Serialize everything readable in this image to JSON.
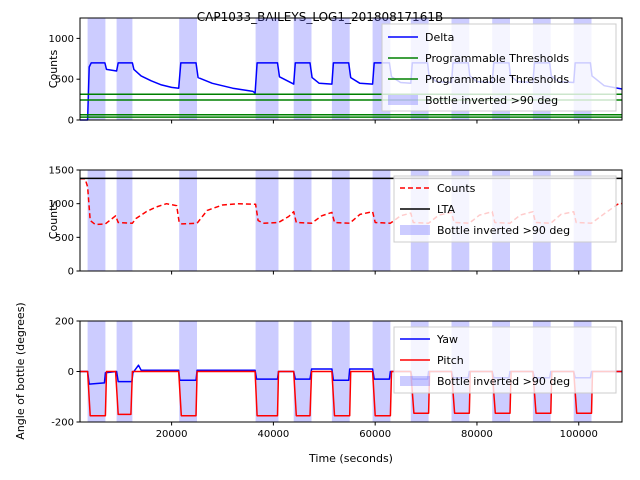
{
  "figure": {
    "title": "CAP1033_BAILEYS_LOG1_20180817161B",
    "xlabel": "Time (seconds)"
  },
  "shaded_intervals": [
    [
      3500,
      7000
    ],
    [
      9200,
      12300
    ],
    [
      21500,
      25000
    ],
    [
      36500,
      41000
    ],
    [
      44000,
      47500
    ],
    [
      51500,
      55000
    ],
    [
      59500,
      63000
    ],
    [
      67000,
      70500
    ],
    [
      75000,
      78500
    ],
    [
      83000,
      86500
    ],
    [
      91000,
      94500
    ],
    [
      99000,
      102500
    ]
  ],
  "chart_data": [
    {
      "type": "line",
      "ylabel": "Counts",
      "xlim": [
        2000,
        108500
      ],
      "ylim": [
        0,
        1250
      ],
      "x_ticks": [
        20000,
        40000,
        60000,
        80000,
        100000
      ],
      "y_ticks": [
        0,
        500,
        1000
      ],
      "legend_position": "top-right",
      "legend": [
        "Delta",
        "Programmable Thresholds",
        "Programmable Thresholds",
        "Bottle inverted >90 deg"
      ],
      "series": [
        {
          "name": "Delta",
          "color": "#0000ff",
          "x": [
            2000,
            3500,
            3800,
            4200,
            6900,
            7200,
            9200,
            9500,
            12300,
            12600,
            14000,
            16000,
            18000,
            20000,
            21400,
            21800,
            24800,
            25200,
            28000,
            32000,
            36000,
            36400,
            36800,
            40800,
            41200,
            44000,
            44300,
            47200,
            47600,
            49000,
            51500,
            51800,
            54800,
            55200,
            57000,
            59500,
            59800,
            62800,
            63200,
            65000,
            67000,
            67300,
            70300,
            70600,
            72000,
            75000,
            75300,
            78300,
            78600,
            80000,
            83000,
            83300,
            86300,
            86600,
            88000,
            91000,
            91300,
            94300,
            94600,
            96000,
            99000,
            99300,
            102300,
            102600,
            105000,
            108500
          ],
          "y": [
            0,
            0,
            650,
            700,
            700,
            620,
            600,
            700,
            700,
            620,
            540,
            480,
            430,
            400,
            390,
            700,
            700,
            520,
            450,
            390,
            350,
            330,
            700,
            700,
            530,
            440,
            700,
            700,
            520,
            450,
            440,
            700,
            700,
            520,
            450,
            440,
            700,
            700,
            530,
            460,
            450,
            700,
            700,
            540,
            470,
            460,
            700,
            700,
            540,
            470,
            460,
            700,
            700,
            540,
            470,
            460,
            700,
            700,
            540,
            470,
            460,
            700,
            700,
            540,
            420,
            380
          ]
        },
        {
          "name": "Programmable Thresholds",
          "color": "#008000",
          "x": [
            2000,
            108500
          ],
          "y": [
            315,
            315
          ]
        },
        {
          "name": "Programmable Thresholds",
          "color": "#008000",
          "x": [
            2000,
            108500
          ],
          "y": [
            245,
            245
          ]
        },
        {
          "name": "Programmable Thresholds",
          "color": "#008000",
          "x": [
            2000,
            108500
          ],
          "y": [
            65,
            65
          ]
        },
        {
          "name": "Programmable Thresholds",
          "color": "#008000",
          "x": [
            2000,
            108500
          ],
          "y": [
            35,
            35
          ]
        }
      ]
    },
    {
      "type": "line",
      "ylabel": "Counts",
      "xlim": [
        2000,
        108500
      ],
      "ylim": [
        0,
        1500
      ],
      "x_ticks": [
        20000,
        40000,
        60000,
        80000,
        100000
      ],
      "y_ticks": [
        0,
        500,
        1000,
        1500
      ],
      "legend_position": "top-right",
      "legend": [
        "Counts",
        "LTA",
        "Bottle inverted >90 deg"
      ],
      "series": [
        {
          "name": "Counts",
          "color": "#ff0000",
          "dash": "dashed",
          "x": [
            2000,
            3000,
            3500,
            4000,
            5000,
            7000,
            9000,
            9500,
            12300,
            13000,
            15000,
            17000,
            19000,
            21000,
            21500,
            22000,
            25000,
            27000,
            30000,
            33000,
            36500,
            37000,
            38000,
            41000,
            43000,
            44000,
            44500,
            47500,
            49500,
            51500,
            52000,
            55000,
            57000,
            59500,
            60000,
            63000,
            65000,
            67000,
            67500,
            70500,
            72500,
            75000,
            75500,
            78500,
            80500,
            83000,
            83500,
            86500,
            88500,
            91000,
            91500,
            94500,
            96500,
            99000,
            99500,
            102500,
            105000,
            108000,
            108500
          ],
          "y": [
            1370,
            1370,
            1250,
            750,
            690,
            700,
            820,
            720,
            710,
            780,
            880,
            950,
            1000,
            970,
            720,
            700,
            710,
            900,
            980,
            1000,
            990,
            750,
            710,
            720,
            810,
            880,
            720,
            710,
            820,
            870,
            720,
            710,
            840,
            880,
            720,
            710,
            820,
            860,
            720,
            710,
            830,
            870,
            720,
            710,
            830,
            880,
            720,
            710,
            830,
            880,
            720,
            710,
            840,
            880,
            720,
            710,
            850,
            1010,
            1000
          ]
        },
        {
          "name": "LTA",
          "color": "#000000",
          "x": [
            2000,
            108500
          ],
          "y": [
            1375,
            1375
          ]
        }
      ]
    },
    {
      "type": "line",
      "ylabel": "Angle of bottle (degrees)",
      "xlim": [
        2000,
        108500
      ],
      "ylim": [
        -200,
        200
      ],
      "x_ticks": [
        20000,
        40000,
        60000,
        80000,
        100000
      ],
      "y_ticks": [
        -200,
        0,
        200
      ],
      "legend_position": "top-right",
      "legend": [
        "Yaw",
        "Pitch",
        "Bottle inverted >90 deg"
      ],
      "series": [
        {
          "name": "Yaw",
          "color": "#0000ff",
          "x": [
            2000,
            3500,
            3800,
            6800,
            7000,
            9200,
            9500,
            12200,
            12400,
            13500,
            14000,
            21400,
            21600,
            24800,
            25000,
            36400,
            36700,
            40800,
            41000,
            44000,
            44300,
            47200,
            47500,
            51500,
            51800,
            54800,
            55000,
            59500,
            59800,
            62800,
            63000,
            67000,
            67300,
            70300,
            70500,
            75000,
            75300,
            78300,
            78500,
            83000,
            83300,
            86300,
            86500,
            91000,
            91300,
            94300,
            94500,
            99000,
            99300,
            102300,
            102500,
            108500
          ],
          "y": [
            0,
            0,
            -50,
            -45,
            -5,
            0,
            -40,
            -40,
            -5,
            25,
            5,
            5,
            -35,
            -35,
            5,
            5,
            -30,
            -30,
            0,
            0,
            -30,
            -30,
            10,
            10,
            -35,
            -35,
            10,
            10,
            -30,
            -30,
            0,
            0,
            -30,
            -30,
            0,
            0,
            -25,
            -25,
            0,
            0,
            -25,
            -25,
            0,
            0,
            -25,
            -25,
            0,
            0,
            -25,
            -25,
            0,
            0
          ]
        },
        {
          "name": "Pitch",
          "color": "#ff0000",
          "x": [
            2000,
            3500,
            4000,
            7000,
            7200,
            9000,
            9500,
            12000,
            12300,
            14000,
            21400,
            21900,
            24800,
            25000,
            36400,
            36800,
            40800,
            41000,
            44000,
            44500,
            47200,
            47500,
            51500,
            52000,
            55000,
            55200,
            59500,
            60000,
            63000,
            63200,
            67000,
            67600,
            70500,
            70700,
            75000,
            75600,
            78500,
            78700,
            83000,
            83600,
            86500,
            86700,
            91000,
            91600,
            94500,
            94700,
            99000,
            99600,
            102500,
            102700,
            108500
          ],
          "y": [
            0,
            0,
            -175,
            -175,
            0,
            0,
            -170,
            -170,
            0,
            0,
            0,
            -175,
            -175,
            0,
            0,
            -175,
            -175,
            0,
            0,
            -175,
            -175,
            0,
            0,
            -175,
            -175,
            0,
            0,
            -175,
            -175,
            0,
            0,
            -165,
            -165,
            0,
            0,
            -165,
            -165,
            0,
            0,
            -165,
            -165,
            0,
            0,
            -165,
            -165,
            0,
            0,
            -165,
            -165,
            0,
            0
          ]
        }
      ]
    }
  ]
}
